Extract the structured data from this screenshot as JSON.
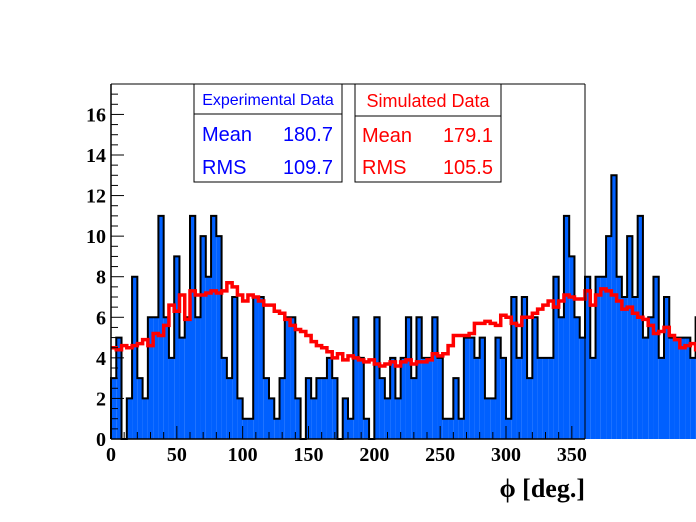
{
  "chart_data": {
    "type": "histogram",
    "xlabel": "ϕ [deg.]",
    "ylabel": "",
    "xlim": [
      0,
      360
    ],
    "ylim": [
      0,
      17.5
    ],
    "x_ticks": [
      0,
      50,
      100,
      150,
      200,
      250,
      300,
      350
    ],
    "y_ticks": [
      0,
      2,
      4,
      6,
      8,
      10,
      12,
      14,
      16
    ],
    "bin_width": 4,
    "series": [
      {
        "name": "Experimental Data",
        "style": "filled-bars",
        "fill_color": "#0060ff",
        "line_color": "#000000",
        "values": [
          3,
          5,
          0,
          2,
          8,
          3,
          2,
          6,
          6,
          11,
          6,
          4,
          9,
          5,
          6,
          11,
          6,
          10,
          8,
          11,
          10,
          4,
          3,
          7,
          2,
          1,
          1,
          7,
          7,
          3,
          2,
          1,
          3,
          6,
          6,
          2,
          0,
          3,
          2,
          3,
          3,
          4,
          3,
          0,
          2,
          1,
          6,
          4,
          1,
          0,
          6,
          3,
          2,
          4,
          2,
          4,
          6,
          3,
          6,
          4,
          4,
          6,
          4,
          1,
          1,
          3,
          1,
          5,
          5,
          4,
          5,
          2,
          2,
          5,
          4,
          1,
          7,
          4,
          7,
          3,
          6,
          4,
          4,
          4,
          8,
          6,
          11,
          9,
          6,
          5,
          8,
          4,
          8,
          8,
          10,
          13,
          8,
          7,
          10,
          7,
          11,
          5,
          6,
          8,
          4,
          7,
          5,
          5,
          5,
          5,
          4,
          6,
          1,
          5
        ]
      },
      {
        "name": "Simulated Data",
        "style": "step-line",
        "line_color": "#ff0000",
        "values": [
          4.5,
          4.4,
          4.6,
          4.5,
          4.6,
          4.7,
          4.9,
          4.6,
          5.2,
          5.1,
          5.6,
          6.6,
          6.3,
          7.1,
          5.9,
          7.3,
          7.1,
          7.1,
          7.2,
          7.3,
          7.2,
          7.3,
          7.7,
          7.5,
          7.1,
          6.8,
          7.1,
          7.0,
          6.8,
          6.6,
          6.6,
          6.3,
          6.2,
          5.9,
          5.6,
          5.4,
          5.3,
          5.1,
          4.8,
          4.6,
          4.5,
          4.3,
          4.0,
          4.2,
          3.9,
          4.1,
          4.0,
          3.9,
          3.8,
          3.9,
          3.7,
          3.6,
          3.7,
          3.8,
          3.6,
          3.8,
          3.9,
          3.7,
          3.8,
          3.8,
          3.9,
          4.2,
          4.1,
          4.2,
          4.6,
          5.1,
          5.1,
          5.1,
          5.2,
          5.7,
          5.7,
          5.8,
          5.7,
          5.6,
          6.1,
          6.0,
          5.7,
          5.6,
          6.0,
          6.0,
          6.2,
          6.4,
          6.6,
          6.8,
          6.5,
          6.8,
          7.1,
          7.0,
          6.9,
          6.9,
          7.3,
          6.6,
          7.1,
          7.4,
          7.3,
          7.1,
          6.8,
          6.4,
          6.5,
          6.2,
          6.0,
          5.9,
          5.6,
          5.2,
          5.3,
          5.5,
          5.1,
          4.9,
          4.5,
          4.6,
          4.7,
          4.4,
          4.2,
          4.4
        ]
      }
    ],
    "stat_boxes": [
      {
        "title": "Experimental Data",
        "mean_label": "Mean",
        "mean": "180.7",
        "rms_label": "RMS",
        "rms": "109.7",
        "color": "#0000ff"
      },
      {
        "title": "Simulated Data",
        "mean_label": "Mean",
        "mean": "179.1",
        "rms_label": "RMS",
        "rms": "105.5",
        "color": "#ff0000"
      }
    ],
    "grid": false
  }
}
